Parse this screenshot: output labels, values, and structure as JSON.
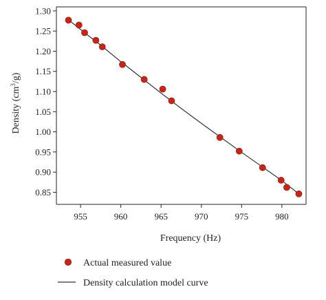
{
  "chart_data": {
    "type": "scatter",
    "title": "",
    "xlabel": "Frequency (Hz)",
    "ylabel_main": "Density (cm",
    "ylabel_sup": "3",
    "ylabel_tail": "/g)",
    "xlim": [
      952,
      983
    ],
    "ylim": [
      0.82,
      1.31
    ],
    "xticks": [
      955,
      960,
      965,
      970,
      975,
      980
    ],
    "xtick_labels": [
      "955",
      "960",
      "965",
      "970",
      "975",
      "980"
    ],
    "yticks": [
      0.85,
      0.9,
      0.95,
      1.0,
      1.05,
      1.1,
      1.15,
      1.2,
      1.25,
      1.3
    ],
    "ytick_labels": [
      "0.85",
      "0.90",
      "0.95",
      "1.00",
      "1.05",
      "1.10",
      "1.15",
      "1.20",
      "1.25",
      "1.30"
    ],
    "grid": false,
    "legend_position": "bottom",
    "colors": {
      "points": "#c0281b",
      "points_edge": "#8a1c12",
      "curve": "#333333",
      "axis": "#222222"
    },
    "series": [
      {
        "name": "Actual measured value",
        "kind": "scatter",
        "x": [
          953.5,
          954.8,
          955.5,
          956.9,
          957.7,
          960.2,
          962.9,
          965.2,
          966.3,
          972.3,
          974.7,
          977.6,
          979.9,
          980.6,
          982.1
        ],
        "y": [
          1.277,
          1.265,
          1.246,
          1.227,
          1.211,
          1.167,
          1.13,
          1.106,
          1.077,
          0.986,
          0.952,
          0.911,
          0.88,
          0.862,
          0.846
        ]
      },
      {
        "name": "Density calculation model curve",
        "kind": "line",
        "x": [
          953.5,
          955.5,
          957.5,
          960.0,
          962.5,
          965.0,
          967.5,
          970.0,
          972.5,
          975.0,
          977.5,
          980.0,
          982.1
        ],
        "y": [
          1.278,
          1.246,
          1.215,
          1.174,
          1.135,
          1.096,
          1.058,
          1.021,
          0.985,
          0.949,
          0.914,
          0.879,
          0.846
        ]
      }
    ]
  }
}
